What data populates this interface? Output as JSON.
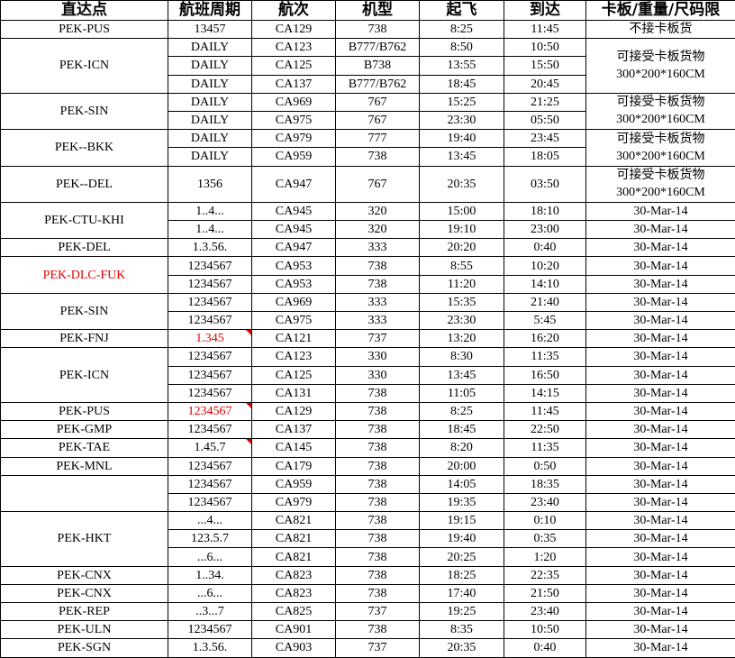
{
  "headers": [
    "直达点",
    "航班周期",
    "航次",
    "机型",
    "起飞",
    "到达",
    "卡板/重量/尺码限"
  ],
  "colors": {
    "highlight": "#e00000",
    "comment_marker": "#e00000"
  },
  "groups": [
    {
      "route": "PEK-PUS",
      "note": "不接卡板货",
      "flights": [
        {
          "days": "13457",
          "flight": "CA129",
          "aircraft": "738",
          "dep": "8:25",
          "arr": "11:45"
        }
      ]
    },
    {
      "route": "PEK-ICN",
      "note": "可接受卡板货物\n300*200*160CM",
      "flights": [
        {
          "days": "DAILY",
          "flight": "CA123",
          "aircraft": "B777/B762",
          "dep": "8:50",
          "arr": "10:50"
        },
        {
          "days": "DAILY",
          "flight": "CA125",
          "aircraft": "B738",
          "dep": "13:55",
          "arr": "15:50"
        },
        {
          "days": "DAILY",
          "flight": "CA137",
          "aircraft": "B777/B762",
          "dep": "18:45",
          "arr": "20:45"
        }
      ]
    },
    {
      "route": "PEK-SIN",
      "note": "可接受卡板货物\n300*200*160CM",
      "flights": [
        {
          "days": "DAILY",
          "flight": "CA969",
          "aircraft": "767",
          "dep": "15:25",
          "arr": "21:25"
        },
        {
          "days": "DAILY",
          "flight": "CA975",
          "aircraft": "767",
          "dep": "23:30",
          "arr": "05:50"
        }
      ]
    },
    {
      "route": "PEK--BKK",
      "note": "可接受卡板货物\n300*200*160CM",
      "flights": [
        {
          "days": "DAILY",
          "flight": "CA979",
          "aircraft": "777",
          "dep": "19:40",
          "arr": "23:45"
        },
        {
          "days": "DAILY",
          "flight": "CA959",
          "aircraft": "738",
          "dep": "13:45",
          "arr": "18:05"
        }
      ]
    },
    {
      "route": "PEK--DEL",
      "note": "可接受卡板货物\n300*200*160CM",
      "double": true,
      "flights": [
        {
          "days": "1356",
          "flight": "CA947",
          "aircraft": "767",
          "dep": "20:35",
          "arr": "03:50"
        }
      ]
    },
    {
      "route": "PEK-CTU-KHI",
      "flights": [
        {
          "days": "1..4...",
          "flight": "CA945",
          "aircraft": "320",
          "dep": "15:00",
          "arr": "18:10",
          "note": "30-Mar-14"
        },
        {
          "days": "1..4...",
          "flight": "CA945",
          "aircraft": "320",
          "dep": "19:10",
          "arr": "23:00",
          "note": "30-Mar-14"
        }
      ]
    },
    {
      "route": "PEK-DEL",
      "flights": [
        {
          "days": "1.3.56.",
          "flight": "CA947",
          "aircraft": "333",
          "dep": "20:20",
          "arr": "0:40",
          "note": "30-Mar-14"
        }
      ]
    },
    {
      "route": "PEK-DLC-FUK",
      "route_red": true,
      "flights": [
        {
          "days": "1234567",
          "flight": "CA953",
          "aircraft": "738",
          "dep": "8:55",
          "arr": "10:20",
          "note": "30-Mar-14"
        },
        {
          "days": "1234567",
          "flight": "CA953",
          "aircraft": "738",
          "dep": "11:20",
          "arr": "14:10",
          "note": "30-Mar-14"
        }
      ]
    },
    {
      "route": "PEK-SIN",
      "flights": [
        {
          "days": "1234567",
          "flight": "CA969",
          "aircraft": "333",
          "dep": "15:35",
          "arr": "21:40",
          "note": "30-Mar-14"
        },
        {
          "days": "1234567",
          "flight": "CA975",
          "aircraft": "333",
          "dep": "23:30",
          "arr": "5:45",
          "note": "30-Mar-14"
        }
      ]
    },
    {
      "route": "PEK-FNJ",
      "flights": [
        {
          "days": "1.345",
          "days_red": true,
          "comment": true,
          "flight": "CA121",
          "aircraft": "737",
          "dep": "13:20",
          "arr": "16:20",
          "note": "30-Mar-14"
        }
      ]
    },
    {
      "route": "PEK-ICN",
      "flights": [
        {
          "days": "1234567",
          "flight": "CA123",
          "aircraft": "330",
          "dep": "8:30",
          "arr": "11:35",
          "note": "30-Mar-14"
        },
        {
          "days": "1234567",
          "flight": "CA125",
          "aircraft": "330",
          "dep": "13:45",
          "arr": "16:50",
          "note": "30-Mar-14"
        },
        {
          "days": "1234567",
          "flight": "CA131",
          "aircraft": "738",
          "dep": "11:05",
          "arr": "14:15",
          "note": "30-Mar-14"
        }
      ]
    },
    {
      "route": "PEK-PUS",
      "flights": [
        {
          "days": "1234567",
          "days_red": true,
          "comment": true,
          "flight": "CA129",
          "aircraft": "738",
          "dep": "8:25",
          "arr": "11:45",
          "note": "30-Mar-14"
        }
      ]
    },
    {
      "route": "PEK-GMP",
      "flights": [
        {
          "days": "1234567",
          "flight": "CA137",
          "aircraft": "738",
          "dep": "18:45",
          "arr": "22:50",
          "note": "30-Mar-14"
        }
      ]
    },
    {
      "route": "PEK-TAE",
      "flights": [
        {
          "days": "1.45.7",
          "comment": true,
          "flight": "CA145",
          "aircraft": "738",
          "dep": "8:20",
          "arr": "11:35",
          "note": "30-Mar-14"
        }
      ]
    },
    {
      "route": "PEK-MNL",
      "flights": [
        {
          "days": "1234567",
          "flight": "CA179",
          "aircraft": "738",
          "dep": "20:00",
          "arr": "0:50",
          "note": "30-Mar-14"
        }
      ]
    },
    {
      "route": "",
      "flights": [
        {
          "days": "1234567",
          "flight": "CA959",
          "aircraft": "738",
          "dep": "14:05",
          "arr": "18:35",
          "note": "30-Mar-14"
        },
        {
          "days": "1234567",
          "flight": "CA979",
          "aircraft": "738",
          "dep": "19:35",
          "arr": "23:40",
          "note": "30-Mar-14"
        }
      ]
    },
    {
      "route": "PEK-HKT",
      "flights": [
        {
          "days": "...4...",
          "flight": "CA821",
          "aircraft": "738",
          "dep": "19:15",
          "arr": "0:10",
          "note": "30-Mar-14"
        },
        {
          "days": "123.5.7",
          "flight": "CA821",
          "aircraft": "738",
          "dep": "19:40",
          "arr": "0:35",
          "note": "30-Mar-14"
        },
        {
          "days": "...6...",
          "flight": "CA821",
          "aircraft": "738",
          "dep": "20:25",
          "arr": "1:20",
          "note": "30-Mar-14"
        }
      ]
    },
    {
      "route": "PEK-CNX",
      "flights": [
        {
          "days": "1..34.",
          "flight": "CA823",
          "aircraft": "738",
          "dep": "18:25",
          "arr": "22:35",
          "note": "30-Mar-14"
        }
      ]
    },
    {
      "route": "PEK-CNX",
      "flights": [
        {
          "days": "...6...",
          "flight": "CA823",
          "aircraft": "738",
          "dep": "17:40",
          "arr": "21:50",
          "note": "30-Mar-14"
        }
      ]
    },
    {
      "route": "PEK-REP",
      "flights": [
        {
          "days": "..3...7",
          "flight": "CA825",
          "aircraft": "737",
          "dep": "19:25",
          "arr": "23:40",
          "note": "30-Mar-14"
        }
      ]
    },
    {
      "route": "PEK-ULN",
      "flights": [
        {
          "days": "1234567",
          "flight": "CA901",
          "aircraft": "738",
          "dep": "8:35",
          "arr": "10:50",
          "note": "30-Mar-14"
        }
      ]
    },
    {
      "route": "PEK-SGN",
      "flights": [
        {
          "days": "1.3.56.",
          "flight": "CA903",
          "aircraft": "737",
          "dep": "20:35",
          "arr": "0:40",
          "note": "30-Mar-14"
        }
      ]
    }
  ]
}
